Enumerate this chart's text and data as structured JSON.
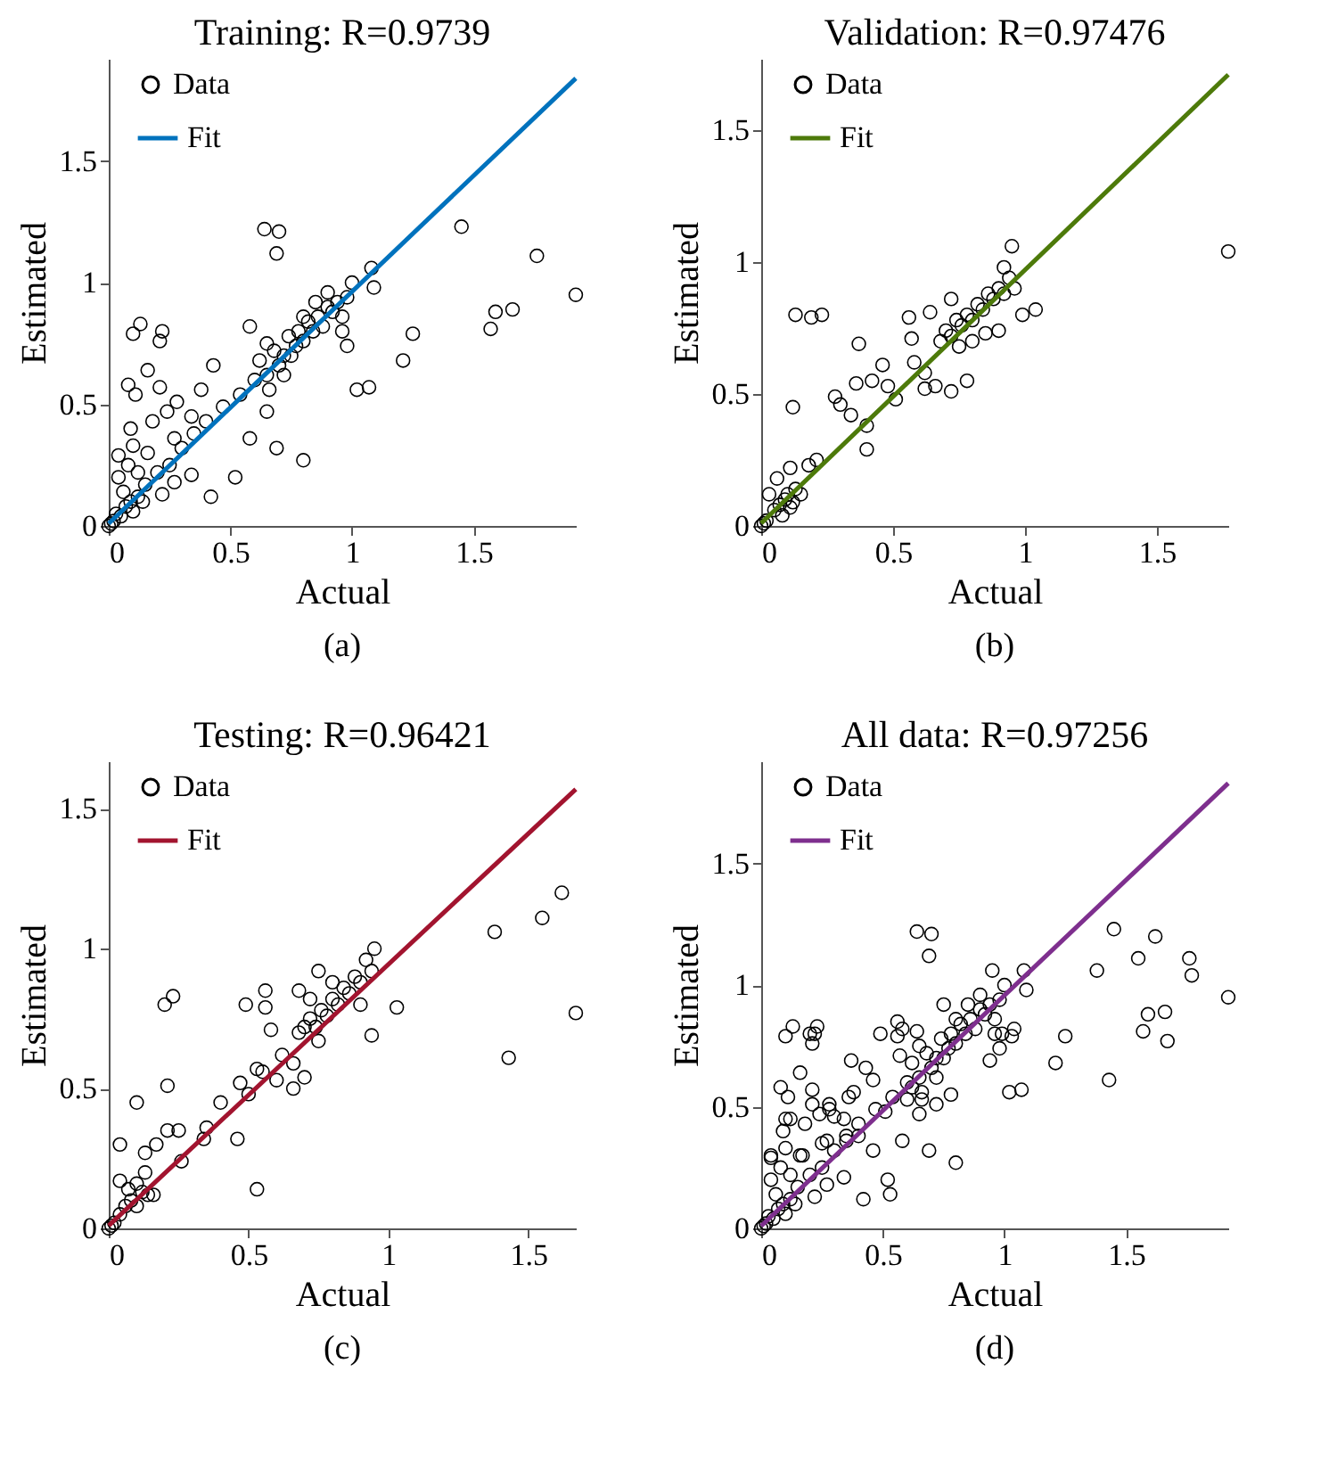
{
  "chart_data": [
    {
      "type": "scatter",
      "title": "Training: R=0.9739",
      "xlabel": "Actual",
      "ylabel": "Estimated",
      "xlim": [
        0,
        1.92
      ],
      "ylim": [
        0,
        1.92
      ],
      "xticks": [
        0,
        0.5,
        1,
        1.5
      ],
      "yticks": [
        0,
        0.5,
        1,
        1.5
      ],
      "legend": "top left",
      "annotations": [
        "(a)"
      ],
      "series": [
        {
          "name": "Data",
          "type": "scatter",
          "marker": "circle",
          "color": "#000000",
          "x": [
            0.64,
            0.7,
            0.69,
            1.45,
            1.76,
            1.92,
            1.59,
            1.66,
            1.57,
            1.25,
            1.21,
            1.02,
            1.07,
            1.08,
            1.09,
            1.0,
            0.8,
            0.69,
            0.42,
            0.52,
            0.34,
            0.13,
            0.1,
            0.22,
            0.21,
            0.16,
            0.08,
            0.11,
            0.21,
            0.04,
            0.09,
            0.18,
            0.27,
            0.24,
            0.28,
            0.43,
            0.58,
            0.65,
            0.38,
            0.4,
            0.47,
            0.54,
            0.58,
            0.65,
            0.34,
            0.22,
            0.27,
            0.6,
            0.62,
            0.65,
            0.68,
            0.7,
            0.72,
            0.74,
            0.75,
            0.77,
            0.78,
            0.8,
            0.82,
            0.84,
            0.86,
            0.88,
            0.9,
            0.92,
            0.94,
            0.96,
            0.98,
            0.9,
            0.85,
            0.8,
            0.72,
            0.66,
            0.96,
            0.98,
            0,
            0.01,
            0.02,
            0.03,
            0.05,
            0.07,
            0.09,
            0.1,
            0.12,
            0.14,
            0.15,
            0.06,
            0.04,
            0.08,
            0.12,
            0.16,
            0.1,
            0.2,
            0.25,
            0.3,
            0.35
          ],
          "values": [
            1.22,
            1.21,
            1.12,
            1.23,
            1.11,
            0.95,
            0.88,
            0.89,
            0.81,
            0.79,
            0.68,
            0.56,
            0.57,
            1.06,
            0.98,
            1.0,
            0.27,
            0.32,
            0.12,
            0.2,
            0.21,
            0.83,
            0.79,
            0.8,
            0.76,
            0.64,
            0.58,
            0.54,
            0.57,
            0.29,
            0.4,
            0.43,
            0.36,
            0.47,
            0.51,
            0.66,
            0.82,
            0.75,
            0.56,
            0.43,
            0.49,
            0.54,
            0.36,
            0.47,
            0.45,
            0.13,
            0.18,
            0.6,
            0.68,
            0.62,
            0.72,
            0.66,
            0.7,
            0.78,
            0.7,
            0.74,
            0.8,
            0.76,
            0.84,
            0.8,
            0.86,
            0.82,
            0.9,
            0.88,
            0.92,
            0.86,
            0.94,
            0.96,
            0.92,
            0.86,
            0.62,
            0.56,
            0.8,
            0.74,
            0,
            0.01,
            0.02,
            0.05,
            0.04,
            0.08,
            0.1,
            0.06,
            0.12,
            0.1,
            0.17,
            0.14,
            0.2,
            0.25,
            0.22,
            0.3,
            0.33,
            0.22,
            0.25,
            0.32,
            0.38
          ]
        },
        {
          "name": "Fit",
          "type": "line",
          "color": "#0072bd",
          "x": [
            0,
            1.92
          ],
          "values": [
            0.01,
            1.84
          ]
        }
      ]
    },
    {
      "type": "scatter",
      "title": "Validation: R=0.97476",
      "xlabel": "Actual",
      "ylabel": "Estimated",
      "xlim": [
        0,
        1.77
      ],
      "ylim": [
        0,
        1.77
      ],
      "xticks": [
        0,
        0.5,
        1,
        1.5
      ],
      "yticks": [
        0,
        0.5,
        1,
        1.5
      ],
      "legend": "top left",
      "annotations": [
        "(b)"
      ],
      "series": [
        {
          "name": "Data",
          "type": "scatter",
          "marker": "circle",
          "color": "#000000",
          "x": [
            1.77,
            0.95,
            1.04,
            0.99,
            0.13,
            0.19,
            0.23,
            0.12,
            0.37,
            0.46,
            0.42,
            0.36,
            0.28,
            0.3,
            0.34,
            0.4,
            0.4,
            0.51,
            0.48,
            0.56,
            0.57,
            0.58,
            0.62,
            0.62,
            0.66,
            0.72,
            0.78,
            0.64,
            0.72,
            0.68,
            0.7,
            0.72,
            0.74,
            0.76,
            0.78,
            0.8,
            0.82,
            0.84,
            0.86,
            0.88,
            0.9,
            0.92,
            0.94,
            0.96,
            0.92,
            0.85,
            0.8,
            0.9,
            0.75,
            0.18,
            0.21,
            0.11,
            0,
            0.01,
            0.02,
            0.05,
            0.07,
            0.09,
            0.1,
            0.12,
            0.13,
            0.15,
            0.06,
            0.03,
            0.08,
            0.11
          ],
          "values": [
            1.04,
            1.06,
            0.82,
            0.8,
            0.8,
            0.79,
            0.8,
            0.45,
            0.69,
            0.61,
            0.55,
            0.54,
            0.49,
            0.46,
            0.42,
            0.38,
            0.29,
            0.48,
            0.53,
            0.79,
            0.71,
            0.62,
            0.58,
            0.52,
            0.53,
            0.51,
            0.55,
            0.81,
            0.86,
            0.7,
            0.74,
            0.72,
            0.78,
            0.76,
            0.8,
            0.78,
            0.84,
            0.82,
            0.88,
            0.86,
            0.9,
            0.88,
            0.94,
            0.9,
            0.98,
            0.73,
            0.7,
            0.74,
            0.68,
            0.23,
            0.25,
            0.22,
            0,
            0.01,
            0.02,
            0.06,
            0.08,
            0.1,
            0.12,
            0.09,
            0.14,
            0.12,
            0.18,
            0.12,
            0.04,
            0.07
          ]
        },
        {
          "name": "Fit",
          "type": "line",
          "color": "#4d7a0a",
          "x": [
            0,
            1.77
          ],
          "values": [
            0.01,
            1.71
          ]
        }
      ]
    },
    {
      "type": "scatter",
      "title": "Testing: R=0.96421",
      "xlabel": "Actual",
      "ylabel": "Estimated",
      "xlim": [
        0,
        1.67
      ],
      "ylim": [
        0,
        1.67
      ],
      "xticks": [
        0,
        0.5,
        1,
        1.5
      ],
      "yticks": [
        0,
        0.5,
        1,
        1.5
      ],
      "legend": "top left",
      "annotations": [
        "(c)"
      ],
      "series": [
        {
          "name": "Data",
          "type": "scatter",
          "marker": "circle",
          "color": "#000000",
          "x": [
            1.67,
            1.62,
            1.55,
            1.38,
            1.43,
            1.03,
            0.94,
            0.95,
            0.53,
            0.04,
            0.1,
            0.2,
            0.23,
            0.21,
            0.21,
            0.25,
            0.17,
            0.13,
            0.26,
            0.04,
            0.35,
            0.34,
            0.4,
            0.46,
            0.47,
            0.49,
            0.56,
            0.56,
            0.58,
            0.53,
            0.6,
            0.66,
            0.7,
            0.66,
            0.75,
            0.75,
            0.68,
            0.68,
            0.7,
            0.72,
            0.74,
            0.76,
            0.78,
            0.8,
            0.82,
            0.84,
            0.86,
            0.88,
            0.9,
            0.92,
            0.9,
            0.94,
            0.72,
            0.8,
            0,
            0.01,
            0.02,
            0.04,
            0.06,
            0.08,
            0.1,
            0.12,
            0.14,
            0.1,
            0.07,
            0.13,
            0.16,
            0.5,
            0.55,
            0.62
          ],
          "values": [
            0.77,
            1.2,
            1.11,
            1.06,
            0.61,
            0.79,
            0.69,
            1.0,
            0.14,
            0.3,
            0.45,
            0.8,
            0.83,
            0.51,
            0.35,
            0.35,
            0.3,
            0.27,
            0.24,
            0.17,
            0.36,
            0.32,
            0.45,
            0.32,
            0.52,
            0.8,
            0.85,
            0.79,
            0.71,
            0.57,
            0.53,
            0.5,
            0.54,
            0.59,
            0.67,
            0.92,
            0.85,
            0.7,
            0.72,
            0.75,
            0.72,
            0.78,
            0.76,
            0.82,
            0.8,
            0.86,
            0.84,
            0.9,
            0.88,
            0.96,
            0.8,
            0.92,
            0.82,
            0.88,
            0,
            0.01,
            0.02,
            0.05,
            0.08,
            0.1,
            0.08,
            0.13,
            0.12,
            0.16,
            0.14,
            0.2,
            0.12,
            0.48,
            0.56,
            0.62
          ]
        },
        {
          "name": "Fit",
          "type": "line",
          "color": "#a2142f",
          "x": [
            0,
            1.67
          ],
          "values": [
            0.01,
            1.57
          ]
        }
      ]
    },
    {
      "type": "scatter",
      "title": "All data: R=0.97256",
      "xlabel": "Actual",
      "ylabel": "Estimated",
      "xlim": [
        0,
        1.92
      ],
      "ylim": [
        0,
        1.92
      ],
      "xticks": [
        0,
        0.5,
        1,
        1.5
      ],
      "yticks": [
        0,
        0.5,
        1,
        1.5
      ],
      "legend": "top left",
      "annotations": [
        "(d)"
      ],
      "series": [
        {
          "name": "Data",
          "type": "scatter",
          "marker": "circle",
          "color": "#000000",
          "x": [
            0.64,
            0.7,
            0.69,
            1.45,
            1.76,
            1.92,
            1.59,
            1.66,
            1.57,
            1.25,
            1.21,
            1.02,
            1.07,
            1.08,
            1.09,
            1.0,
            0.8,
            0.69,
            0.42,
            0.52,
            0.34,
            0.13,
            0.1,
            0.22,
            0.21,
            0.16,
            0.08,
            0.11,
            0.21,
            0.04,
            0.09,
            0.18,
            0.27,
            0.24,
            0.28,
            0.43,
            0.58,
            0.65,
            0.38,
            0.4,
            0.47,
            0.54,
            0.58,
            0.65,
            0.34,
            0.22,
            0.27,
            0.6,
            0.62,
            0.65,
            0.68,
            0.7,
            0.72,
            0.74,
            0.75,
            0.77,
            0.78,
            0.8,
            0.82,
            0.84,
            0.86,
            0.88,
            0.9,
            0.92,
            0.94,
            0.96,
            0.98,
            0.9,
            0.85,
            0.8,
            0.72,
            0.66,
            0.96,
            0.98,
            0,
            0.01,
            0.02,
            0.03,
            0.05,
            0.07,
            0.09,
            0.1,
            0.12,
            0.14,
            0.15,
            0.06,
            0.04,
            0.08,
            0.12,
            0.16,
            0.1,
            0.2,
            0.25,
            0.3,
            0.35,
            1.77,
            0.95,
            1.04,
            0.99,
            0.12,
            0.37,
            0.46,
            0.36,
            0.28,
            0.3,
            0.4,
            0.51,
            0.56,
            0.57,
            0.62,
            0.66,
            0.72,
            0.78,
            0.64,
            1.67,
            1.62,
            1.55,
            1.38,
            1.43,
            1.03,
            0.94,
            0.53,
            0.04,
            0.1,
            0.2,
            0.23,
            0.21,
            0.25,
            0.17,
            0.35,
            0.46,
            0.49,
            0.56,
            0.6,
            0.75
          ],
          "values": [
            1.22,
            1.21,
            1.12,
            1.23,
            1.11,
            0.95,
            0.88,
            0.89,
            0.81,
            0.79,
            0.68,
            0.56,
            0.57,
            1.06,
            0.98,
            1.0,
            0.27,
            0.32,
            0.12,
            0.2,
            0.21,
            0.83,
            0.79,
            0.8,
            0.76,
            0.64,
            0.58,
            0.54,
            0.57,
            0.29,
            0.4,
            0.43,
            0.36,
            0.47,
            0.51,
            0.66,
            0.82,
            0.75,
            0.56,
            0.43,
            0.49,
            0.54,
            0.36,
            0.47,
            0.45,
            0.13,
            0.18,
            0.6,
            0.68,
            0.62,
            0.72,
            0.66,
            0.7,
            0.78,
            0.7,
            0.74,
            0.8,
            0.76,
            0.84,
            0.8,
            0.86,
            0.82,
            0.9,
            0.88,
            0.92,
            0.86,
            0.94,
            0.96,
            0.92,
            0.86,
            0.62,
            0.56,
            0.8,
            0.74,
            0,
            0.01,
            0.02,
            0.05,
            0.04,
            0.08,
            0.1,
            0.06,
            0.12,
            0.1,
            0.17,
            0.14,
            0.2,
            0.25,
            0.22,
            0.3,
            0.33,
            0.22,
            0.25,
            0.32,
            0.38,
            1.04,
            1.06,
            0.82,
            0.8,
            0.45,
            0.69,
            0.61,
            0.54,
            0.49,
            0.46,
            0.38,
            0.48,
            0.79,
            0.71,
            0.58,
            0.53,
            0.51,
            0.55,
            0.81,
            0.77,
            1.2,
            1.11,
            1.06,
            0.61,
            0.79,
            0.69,
            0.14,
            0.3,
            0.45,
            0.8,
            0.83,
            0.51,
            0.35,
            0.3,
            0.36,
            0.32,
            0.8,
            0.85,
            0.53,
            0.92
          ]
        },
        {
          "name": "Fit",
          "type": "line",
          "color": "#7e2f8e",
          "x": [
            0,
            1.92
          ],
          "values": [
            0.01,
            1.83
          ]
        }
      ]
    }
  ]
}
